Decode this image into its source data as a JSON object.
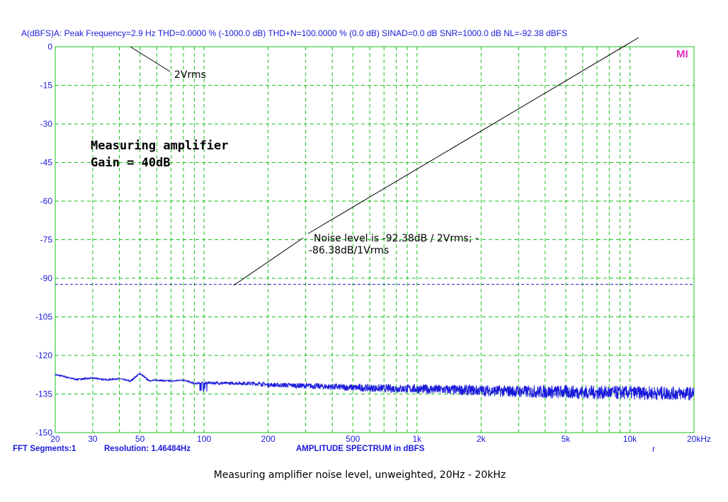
{
  "chart_data": {
    "type": "line",
    "header": "A(dBFS)A: Peak Frequency=2.9 Hz  THD=0.0000 % (-1000.0 dB)  THD+N=100.0000 % (0.0 dB)  SINAD=0.0 dB  SNR=1000.0 dB  NL=-92.38 dBFS",
    "xlabel": "AMPLITUDE SPECTRUM in dBFS",
    "footer_left": "FFT Segments:1",
    "footer_resolution": "Resolution: 1.46484Hz",
    "footer_mark": "r",
    "x_scale": "log",
    "xlim": [
      20,
      20000
    ],
    "ylim": [
      -150,
      0
    ],
    "grid": true,
    "x_major_ticks": [
      {
        "value": 20,
        "label": "20"
      },
      {
        "value": 50,
        "label": "50"
      },
      {
        "value": 100,
        "label": "100"
      },
      {
        "value": 200,
        "label": "200"
      },
      {
        "value": 500,
        "label": "500"
      },
      {
        "value": 1000,
        "label": "1k"
      },
      {
        "value": 2000,
        "label": "2k"
      },
      {
        "value": 5000,
        "label": "5k"
      },
      {
        "value": 10000,
        "label": "10k"
      },
      {
        "value": 20000,
        "label": "20kHz"
      }
    ],
    "x_minor_labeled_ticks": [
      {
        "value": 30,
        "label": "30"
      }
    ],
    "y_ticks": [
      0,
      -15,
      -30,
      -45,
      -60,
      -75,
      -90,
      -105,
      -120,
      -135,
      -150
    ],
    "reference_line": {
      "name": "NL",
      "value": -92.38
    },
    "series": [
      {
        "color": "#1a1adc",
        "x": [
          20,
          22,
          25,
          28,
          30,
          35,
          40,
          45,
          50,
          55,
          60,
          70,
          80,
          90,
          100,
          120,
          150,
          180,
          200,
          250,
          300,
          400,
          500,
          700,
          1000,
          1500,
          2000,
          3000,
          5000,
          7000,
          10000,
          15000,
          20000
        ],
        "y": [
          -127.5,
          -128.2,
          -129.3,
          -129.0,
          -128.8,
          -129.5,
          -129.0,
          -130.0,
          -127.0,
          -129.8,
          -129.6,
          -130.0,
          -129.5,
          -131.0,
          -130.6,
          -130.8,
          -130.8,
          -131.0,
          -131.4,
          -131.6,
          -131.8,
          -132.2,
          -132.5,
          -132.8,
          -133.0,
          -133.4,
          -133.6,
          -134.0,
          -134.2,
          -134.4,
          -134.5,
          -134.7,
          -134.8
        ]
      }
    ],
    "annotations": {
      "level_label": "2Vrms",
      "title_line1": "Measuring amplifier",
      "title_line2": "Gain = 40dB",
      "noise_line1": "Noise level is -92.38dB / 2Vrms;  -",
      "noise_line2": "-86.38dB/1Vrms"
    },
    "logo": "MI",
    "caption": "Measuring amplifier noise level, unweighted, 20Hz - 20kHz",
    "colors": {
      "grid": "#19c119",
      "axis_text": "#1a1adc",
      "trace": "#1a1adc",
      "logo": "#e030c0"
    }
  }
}
